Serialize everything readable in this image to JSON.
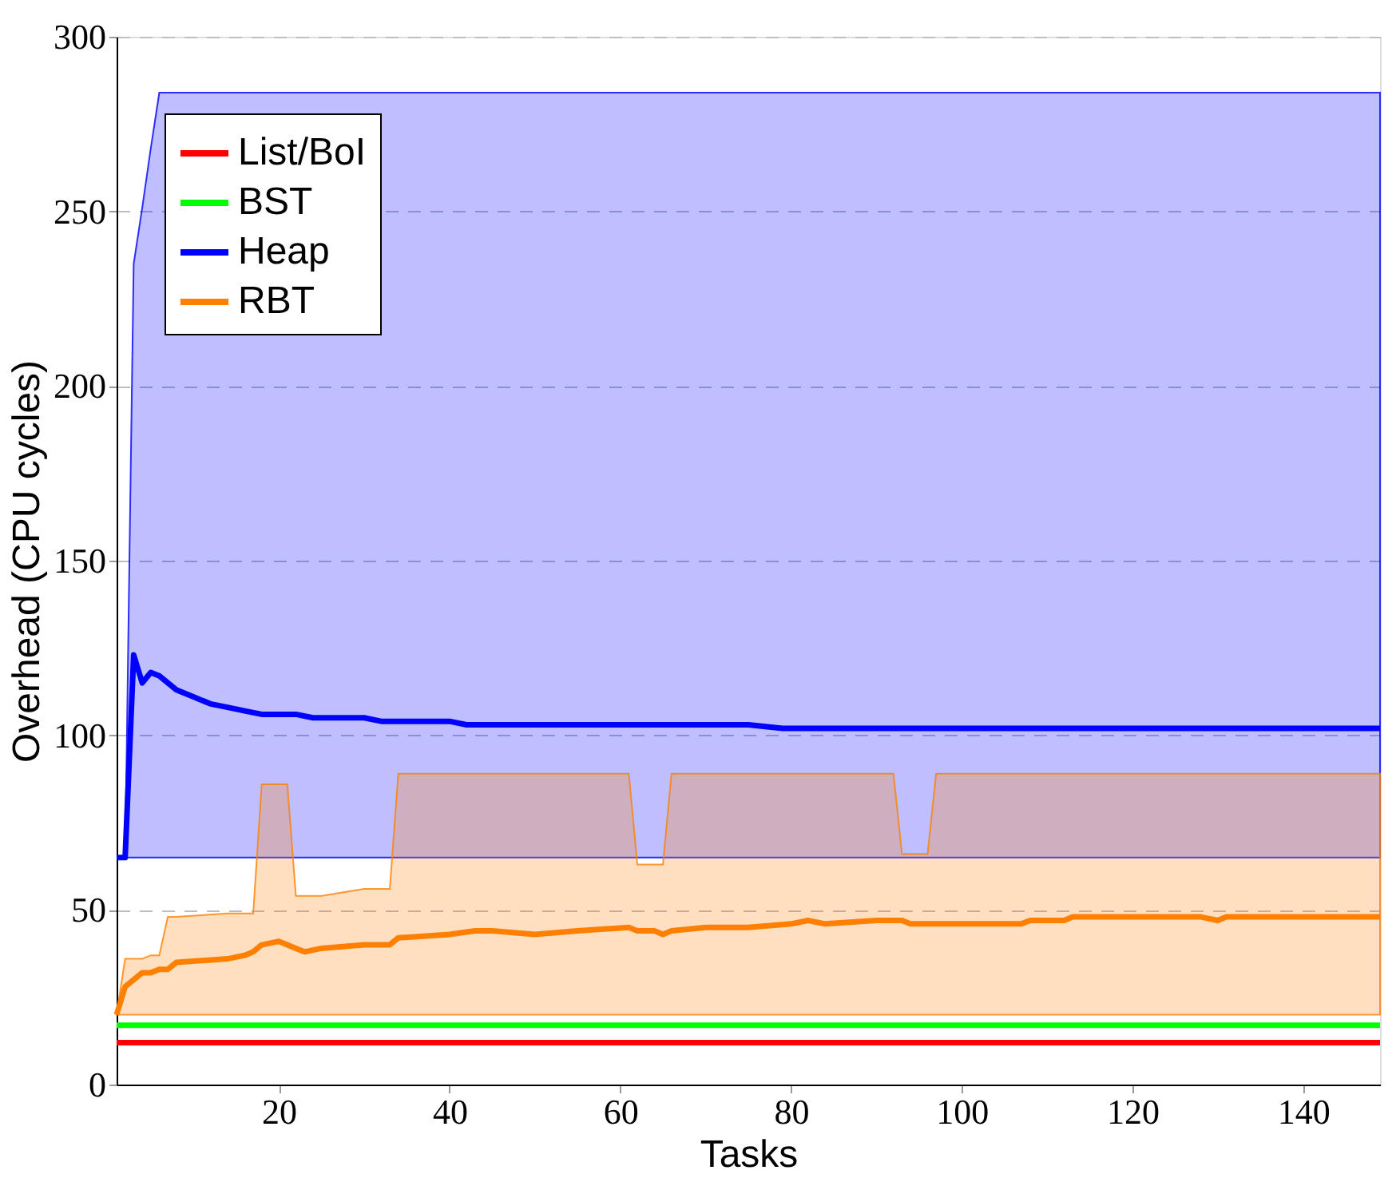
{
  "chart_data": {
    "type": "line",
    "xlabel": "Tasks",
    "ylabel": "Overhead (CPU cycles)",
    "xlim": [
      1,
      149
    ],
    "ylim": [
      0,
      300
    ],
    "xticks": [
      20,
      40,
      60,
      80,
      100,
      120,
      140
    ],
    "yticks": [
      0,
      50,
      100,
      150,
      200,
      250,
      300
    ],
    "grid": "y",
    "legend": "top left",
    "line_style": "solid",
    "marker": "none",
    "series": [
      {
        "name": "List/BoI",
        "color": "#ff0000",
        "x": [
          1,
          149
        ],
        "values": [
          12,
          12
        ]
      },
      {
        "name": "BST",
        "color": "#00ff00",
        "x": [
          1,
          149
        ],
        "values": [
          17,
          17
        ]
      },
      {
        "name": "Heap",
        "color": "#0000ff",
        "x": [
          1,
          2,
          3,
          4,
          5,
          6,
          8,
          10,
          12,
          14,
          16,
          18,
          22,
          24,
          30,
          32,
          40,
          42,
          75,
          79,
          149
        ],
        "values": [
          65,
          65,
          123,
          115,
          118,
          117,
          113,
          111,
          109,
          108,
          107,
          106,
          106,
          105,
          105,
          104,
          104,
          103,
          103,
          102,
          102
        ],
        "lower": [
          65,
          65,
          65,
          65,
          65,
          65,
          65,
          65,
          65,
          65,
          65,
          65,
          65,
          65,
          65,
          65,
          65,
          65,
          65,
          65,
          65
        ],
        "upper": [
          65,
          65,
          235,
          251,
          268,
          284,
          284,
          284,
          284,
          284,
          284,
          284,
          284,
          284,
          284,
          284,
          284,
          284,
          284,
          284,
          284
        ]
      },
      {
        "name": "RBT",
        "color": "#ff8000",
        "x": [
          1,
          2,
          3,
          4,
          5,
          6,
          7,
          8,
          14,
          16,
          17,
          18,
          20,
          21,
          22,
          23,
          25,
          30,
          33,
          34,
          40,
          43,
          45,
          50,
          55,
          61,
          62,
          64,
          65,
          66,
          70,
          75,
          80,
          82,
          84,
          90,
          92,
          93,
          94,
          96,
          97,
          107,
          108,
          112,
          113,
          128,
          130,
          131,
          149
        ],
        "values": [
          20,
          28,
          30,
          32,
          32,
          33,
          33,
          35,
          36,
          37,
          38,
          40,
          41,
          40,
          39,
          38,
          39,
          40,
          40,
          42,
          43,
          44,
          44,
          43,
          44,
          45,
          44,
          44,
          43,
          44,
          45,
          45,
          46,
          47,
          46,
          47,
          47,
          47,
          46,
          46,
          46,
          46,
          47,
          47,
          48,
          48,
          47,
          48,
          48
        ],
        "lower": [
          20,
          20,
          20,
          20,
          20,
          20,
          20,
          20,
          20,
          20,
          20,
          20,
          20,
          20,
          20,
          20,
          20,
          20,
          20,
          20,
          20,
          20,
          20,
          20,
          20,
          20,
          20,
          20,
          20,
          20,
          20,
          20,
          20,
          20,
          20,
          20,
          20,
          20,
          20,
          20,
          20,
          20,
          20,
          20,
          20,
          20,
          20,
          20,
          20
        ],
        "upper": [
          20,
          36,
          36,
          36,
          37,
          37,
          48,
          48,
          49,
          49,
          49,
          86,
          86,
          86,
          54,
          54,
          54,
          56,
          56,
          89,
          89,
          89,
          89,
          89,
          89,
          89,
          63,
          63,
          63,
          89,
          89,
          89,
          89,
          89,
          89,
          89,
          89,
          66,
          66,
          66,
          89,
          89,
          89,
          89,
          89,
          89,
          89,
          89,
          89
        ]
      }
    ]
  }
}
